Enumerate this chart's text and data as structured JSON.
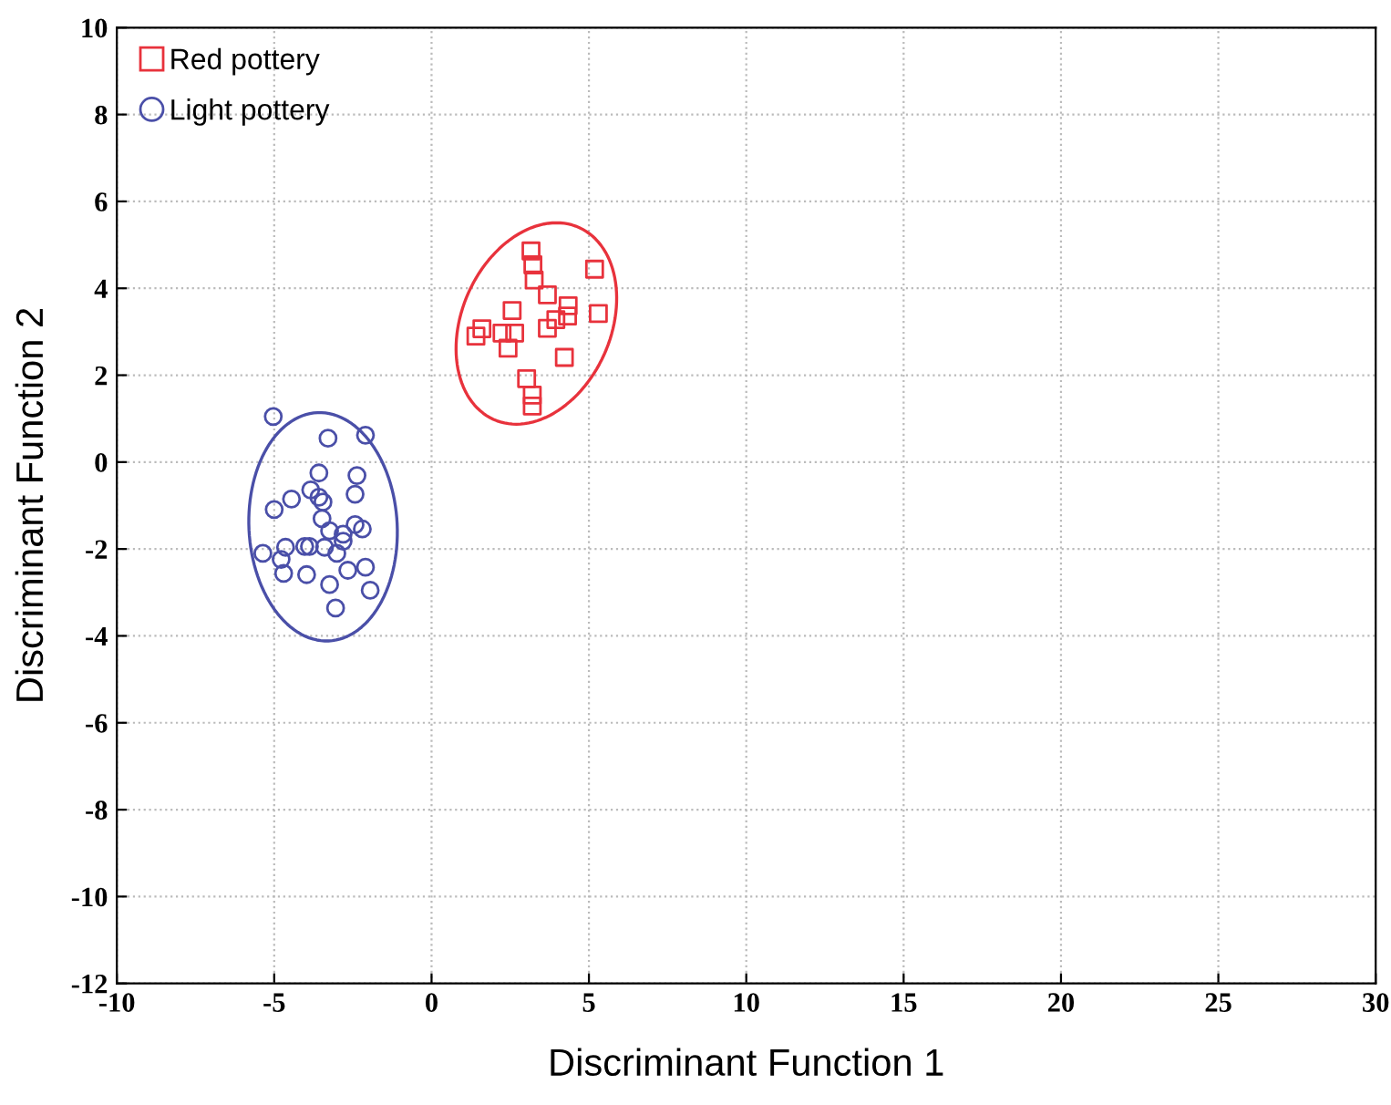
{
  "chart_data": {
    "type": "scatter",
    "xlabel": "Discriminant Function 1",
    "ylabel": "Discriminant Function 2",
    "xlim": [
      -10,
      30
    ],
    "xticks": [
      -10,
      -5,
      0,
      5,
      10,
      15,
      20,
      25,
      30
    ],
    "ylim": [
      -12,
      10
    ],
    "yticks": [
      -12,
      -10,
      -8,
      -6,
      -4,
      -2,
      0,
      2,
      4,
      6,
      8,
      10
    ],
    "grid": true,
    "legend": "top left",
    "series": [
      {
        "name": "Red pottery",
        "marker": "square",
        "color": "#e8323c",
        "x": [
          3.16,
          3.22,
          3.26,
          5.18,
          3.68,
          4.34,
          4.32,
          3.95,
          5.3,
          3.68,
          2.56,
          1.6,
          1.41,
          2.24,
          2.64,
          2.43,
          4.22,
          3.02,
          3.2,
          3.2
        ],
        "values": [
          4.86,
          4.54,
          4.19,
          4.44,
          3.85,
          3.6,
          3.36,
          3.28,
          3.42,
          3.08,
          3.49,
          3.07,
          2.9,
          2.97,
          2.97,
          2.62,
          2.41,
          1.92,
          1.54,
          1.29
        ]
      },
      {
        "name": "Light pottery",
        "marker": "circle",
        "color": "#4a4fa8",
        "x": [
          -5.03,
          -3.29,
          -2.1,
          -3.58,
          -2.37,
          -3.84,
          -2.43,
          -3.45,
          -3.58,
          -4.45,
          -5.0,
          -3.48,
          -3.24,
          -2.81,
          -2.43,
          -2.2,
          -5.36,
          -4.64,
          -4.78,
          -4.03,
          -3.88,
          -3.4,
          -3.01,
          -2.81,
          -4.7,
          -3.97,
          -2.66,
          -2.1,
          -3.24,
          -1.95,
          -3.05
        ],
        "values": [
          1.05,
          0.55,
          0.62,
          -0.25,
          -0.31,
          -0.64,
          -0.74,
          -0.92,
          -0.81,
          -0.85,
          -1.09,
          -1.3,
          -1.58,
          -1.66,
          -1.44,
          -1.54,
          -2.1,
          -1.96,
          -2.24,
          -1.94,
          -1.94,
          -1.96,
          -2.1,
          -1.82,
          -2.56,
          -2.59,
          -2.49,
          -2.42,
          -2.82,
          -2.95,
          -3.36
        ]
      }
    ]
  }
}
